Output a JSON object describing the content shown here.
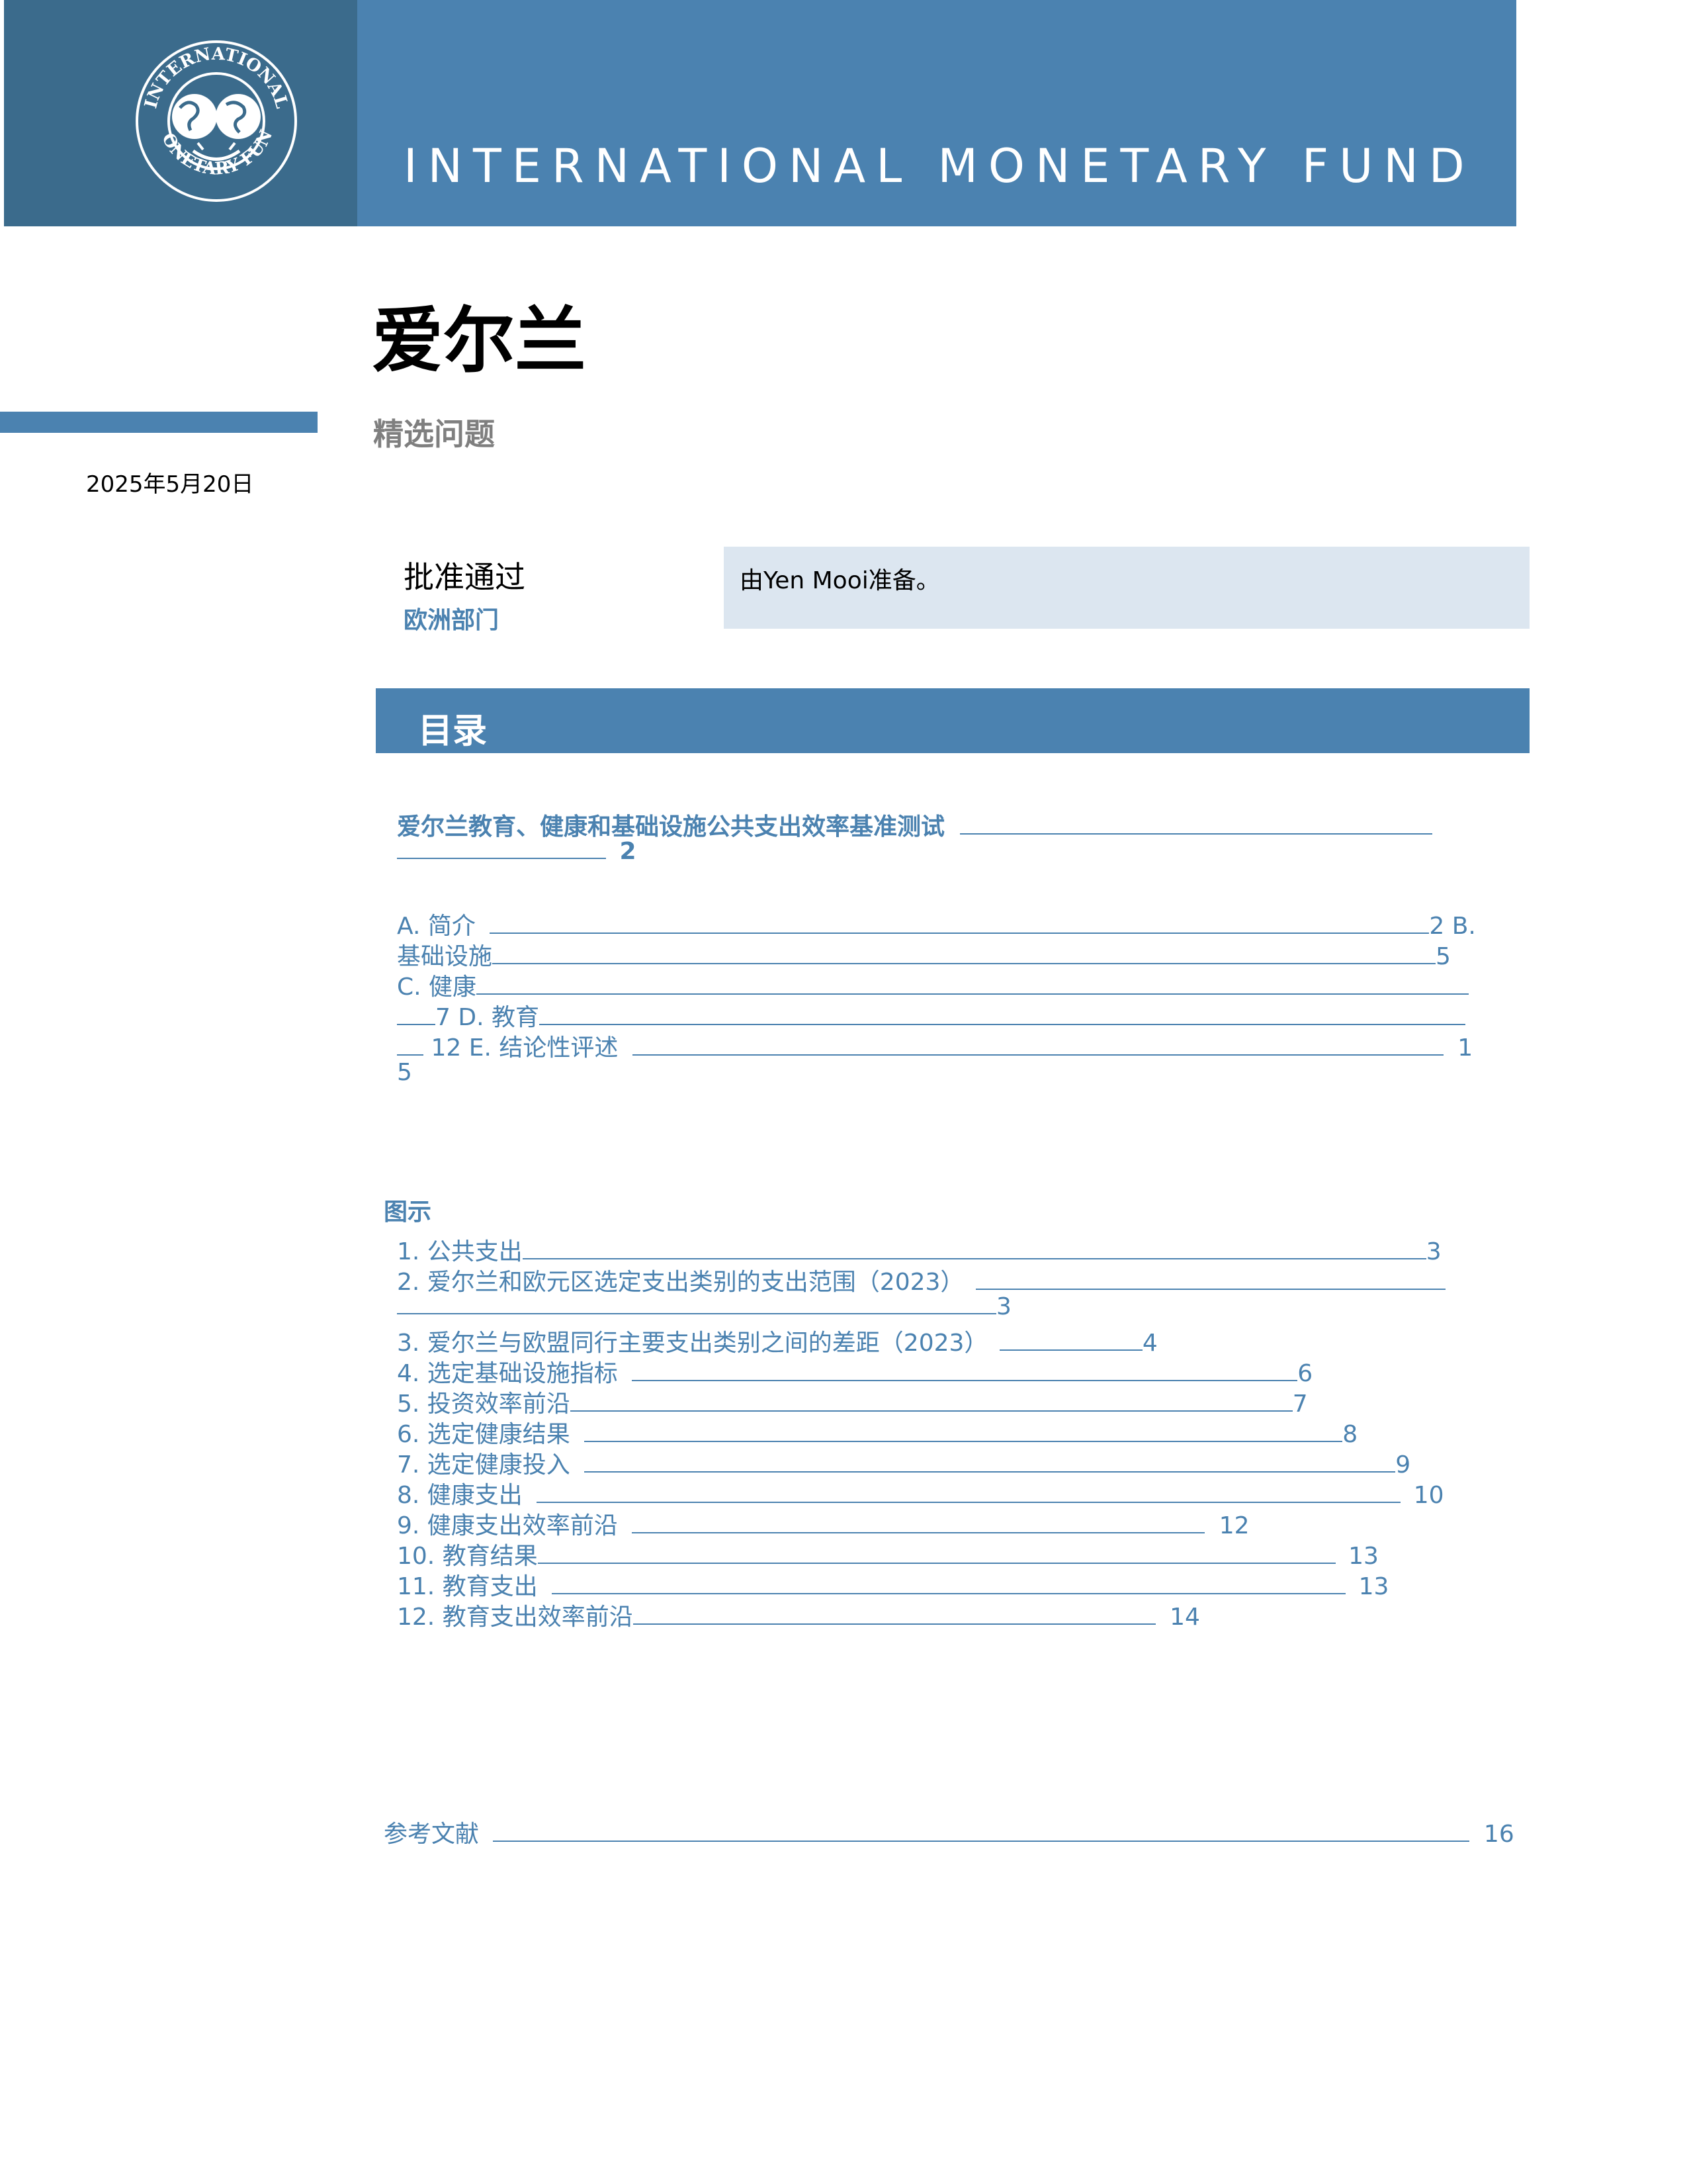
{
  "header": {
    "org_name": "INTERNATIONAL MONETARY FUND",
    "seal_text_top": "INTERNATIONAL",
    "seal_text_bottom": "MONETARY FUND"
  },
  "title": {
    "country": "爱尔兰",
    "subtitle": "精选问题",
    "date": "2025年5月20日"
  },
  "approval": {
    "label": "批准通过",
    "department": "欧洲部门",
    "prepared_by": "由Yen Mooi准备。"
  },
  "contents": {
    "heading": "目录",
    "main_entry": {
      "title": "爱尔兰教育、健康和基础设施公共支出效率基准测试",
      "page": "2"
    },
    "sections": {
      "a_title": "A. 简介",
      "a_page": "2",
      "b_prefix": "B.",
      "b_title": "基础设施",
      "b_page": "5",
      "c_title": "C. 健康",
      "c_page": "7",
      "d_title": "D. 教育",
      "d_page": "12",
      "e_title": "E. 结论性评述",
      "e_page_part1": "1",
      "e_page_part2": "5"
    },
    "figures_heading": "图示",
    "figures": [
      {
        "label": "1. 公共支出",
        "page": "3"
      },
      {
        "label": "2. 爱尔兰和欧元区选定支出类别的支出范围（2023）",
        "page": "3"
      },
      {
        "label": "3. 爱尔兰与欧盟同行主要支出类别之间的差距（2023）",
        "page": "4"
      },
      {
        "label": "4. 选定基础设施指标",
        "page": "6"
      },
      {
        "label": "5. 投资效率前沿",
        "page": "7"
      },
      {
        "label": "6. 选定健康结果",
        "page": "8"
      },
      {
        "label": "7. 选定健康投入",
        "page": "9"
      },
      {
        "label": "8. 健康支出",
        "page": "10"
      },
      {
        "label": "9. 健康支出效率前沿",
        "page": "12"
      },
      {
        "label": "10. 教育结果",
        "page": "13"
      },
      {
        "label": "11. 教育支出",
        "page": "13"
      },
      {
        "label": "12. 教育支出效率前沿",
        "page": "14"
      }
    ],
    "references": {
      "label": "参考文献",
      "page": "16"
    }
  }
}
